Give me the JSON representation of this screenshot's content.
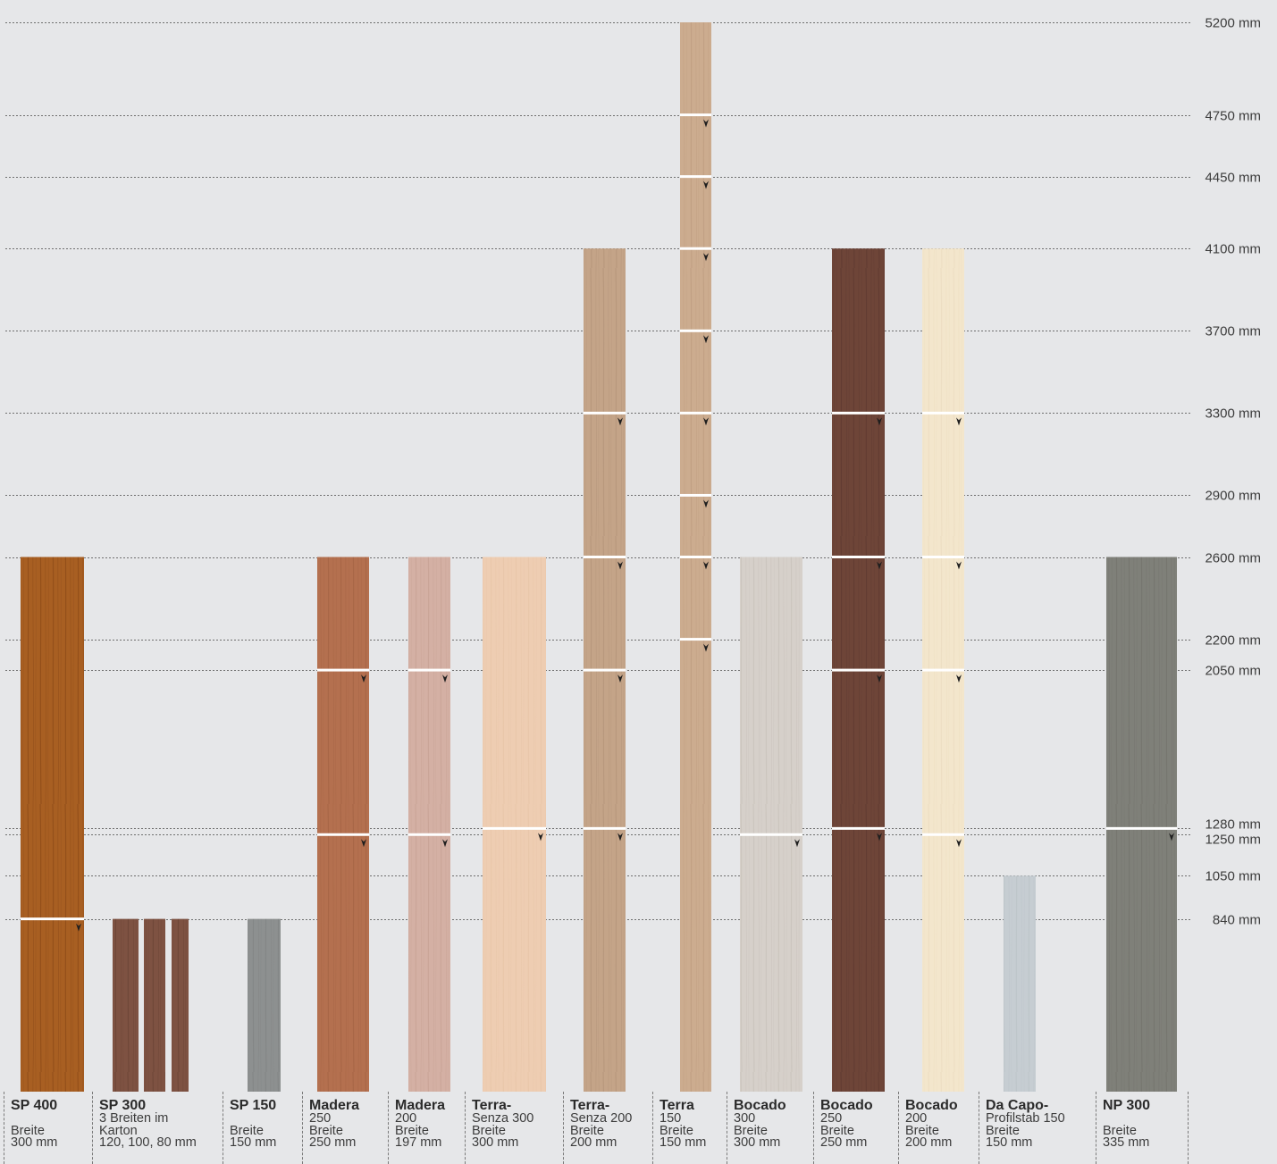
{
  "chart_data": {
    "type": "bar",
    "y_unit": "mm",
    "y_levels": [
      {
        "value": 5200,
        "label": "5200 mm"
      },
      {
        "value": 4750,
        "label": "4750 mm"
      },
      {
        "value": 4450,
        "label": "4450 mm"
      },
      {
        "value": 4100,
        "label": "4100 mm"
      },
      {
        "value": 3700,
        "label": "3700 mm"
      },
      {
        "value": 3300,
        "label": "3300 mm"
      },
      {
        "value": 2900,
        "label": "2900 mm"
      },
      {
        "value": 2600,
        "label": "2600 mm"
      },
      {
        "value": 2200,
        "label": "2200 mm"
      },
      {
        "value": 2050,
        "label": "2050 mm"
      },
      {
        "value": 1280,
        "label": "1280 mm"
      },
      {
        "value": 1250,
        "label": "1250 mm"
      },
      {
        "value": 1050,
        "label": "1050 mm"
      },
      {
        "value": 840,
        "label": "840 mm"
      }
    ],
    "products": [
      {
        "name": "SP 400",
        "lines": [
          "",
          "Breite",
          "300 mm"
        ],
        "max_length": 2600,
        "cut_marks": [
          840
        ],
        "color": "#a85f22",
        "grain": "#7a3d10"
      },
      {
        "name": "SP 300",
        "lines": [
          "3 Breiten im",
          "Karton",
          "120, 100, 80 mm"
        ],
        "max_length": 840,
        "cut_marks": [],
        "color": "#7e5242",
        "grain": "#5e392c"
      },
      {
        "name": "SP 150",
        "lines": [
          "",
          "Breite",
          "150 mm"
        ],
        "max_length": 840,
        "cut_marks": [],
        "color": "#8d9090",
        "grain": "#777a7a"
      },
      {
        "name": "Madera",
        "lines": [
          "250",
          "Breite",
          "250 mm"
        ],
        "max_length": 2600,
        "cut_marks": [
          2050,
          1250
        ],
        "color": "#b4704f",
        "grain": "#9a5a3c"
      },
      {
        "name": "Madera",
        "lines": [
          "200",
          "Breite",
          "197 mm"
        ],
        "max_length": 2600,
        "cut_marks": [
          2050,
          1250
        ],
        "color": "#d4b0a4",
        "grain": "#bf9889"
      },
      {
        "name": "Terra-",
        "lines": [
          "Senza 300",
          "Breite",
          "300 mm"
        ],
        "max_length": 2600,
        "cut_marks": [
          1280
        ],
        "color": "#eecdb2",
        "grain": "#e2bea1"
      },
      {
        "name": "Terra-",
        "lines": [
          "Senza 200",
          "Breite",
          "200 mm"
        ],
        "max_length": 4100,
        "cut_marks": [
          3300,
          2600,
          2050,
          1280
        ],
        "color": "#c4a488",
        "grain": "#a88a6e"
      },
      {
        "name": "Terra",
        "lines": [
          "150",
          "Breite",
          "150 mm"
        ],
        "max_length": 5200,
        "cut_marks": [
          4750,
          4450,
          4100,
          3700,
          3300,
          2900,
          2600,
          2200
        ],
        "color": "#ccac8f",
        "grain": "#b39276"
      },
      {
        "name": "Bocado",
        "lines": [
          "300",
          "Breite",
          "300 mm"
        ],
        "max_length": 2600,
        "cut_marks": [
          1250
        ],
        "color": "#d6d0ca",
        "grain": "#bfb8b0"
      },
      {
        "name": "Bocado",
        "lines": [
          "250",
          "Breite",
          "250 mm"
        ],
        "max_length": 4100,
        "cut_marks": [
          3300,
          2600,
          2050,
          1280
        ],
        "color": "#6e4538",
        "grain": "#54302a"
      },
      {
        "name": "Bocado",
        "lines": [
          "200",
          "Breite",
          "200 mm"
        ],
        "max_length": 4100,
        "cut_marks": [
          3300,
          2600,
          2050,
          1250
        ],
        "color": "#f3e6cc",
        "grain": "#e6d6b8"
      },
      {
        "name": "Da Capo-",
        "lines": [
          "Profilstab 150",
          "Breite",
          "150 mm"
        ],
        "max_length": 1050,
        "cut_marks": [],
        "color": "#c6cdd2",
        "grain": "#b5bcc1"
      },
      {
        "name": "NP 300",
        "lines": [
          "",
          "Breite",
          "335 mm"
        ],
        "max_length": 2600,
        "cut_marks": [
          1280
        ],
        "color": "#7f8079",
        "grain": "#6a6b64"
      }
    ]
  }
}
